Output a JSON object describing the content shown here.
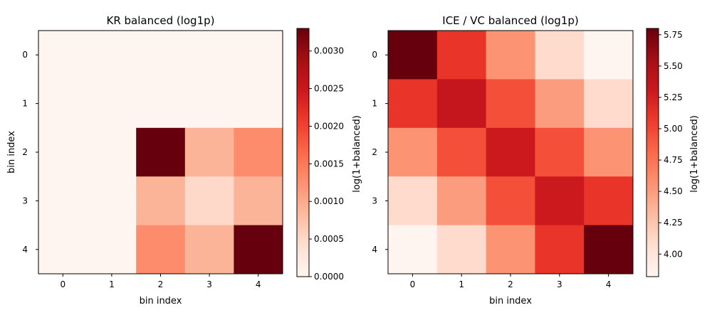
{
  "chart_data": [
    {
      "type": "heatmap",
      "title": "KR balanced (log1p)",
      "xlabel": "bin index",
      "ylabel": "bin index",
      "x_ticks": [
        "0",
        "1",
        "2",
        "3",
        "4"
      ],
      "y_ticks": [
        "0",
        "1",
        "2",
        "3",
        "4"
      ],
      "colormap": "Reds",
      "colorbar": {
        "label": "log(1+balanced)",
        "vmin": 0.0,
        "vmax": 0.0033,
        "ticks": [
          "0.0000",
          "0.0005",
          "0.0010",
          "0.0015",
          "0.0020",
          "0.0025",
          "0.0030"
        ]
      },
      "values": [
        [
          0,
          0,
          0,
          0,
          0
        ],
        [
          0,
          0,
          0,
          0,
          0
        ],
        [
          0,
          0,
          0.0033,
          0.0009,
          0.0013
        ],
        [
          0,
          0,
          0.0009,
          0.0005,
          0.0009
        ],
        [
          0,
          0,
          0.0013,
          0.0009,
          0.0033
        ]
      ]
    },
    {
      "type": "heatmap",
      "title": "ICE / VC balanced (log1p)",
      "xlabel": "bin index",
      "ylabel": "",
      "x_ticks": [
        "0",
        "1",
        "2",
        "3",
        "4"
      ],
      "y_ticks": [
        "0",
        "1",
        "2",
        "3",
        "4"
      ],
      "colormap": "Reds",
      "colorbar": {
        "label": "log(1+balanced)",
        "vmin": 3.82,
        "vmax": 5.8,
        "ticks": [
          "4.00",
          "4.25",
          "4.50",
          "4.75",
          "5.00",
          "5.25",
          "5.50",
          "5.75"
        ]
      },
      "values": [
        [
          5.8,
          5.1,
          4.55,
          4.1,
          3.82
        ],
        [
          5.1,
          5.35,
          4.95,
          4.5,
          4.1
        ],
        [
          4.55,
          4.95,
          5.3,
          4.95,
          4.55
        ],
        [
          4.1,
          4.5,
          4.95,
          5.3,
          5.1
        ],
        [
          3.82,
          4.1,
          4.55,
          5.1,
          5.8
        ]
      ]
    }
  ]
}
